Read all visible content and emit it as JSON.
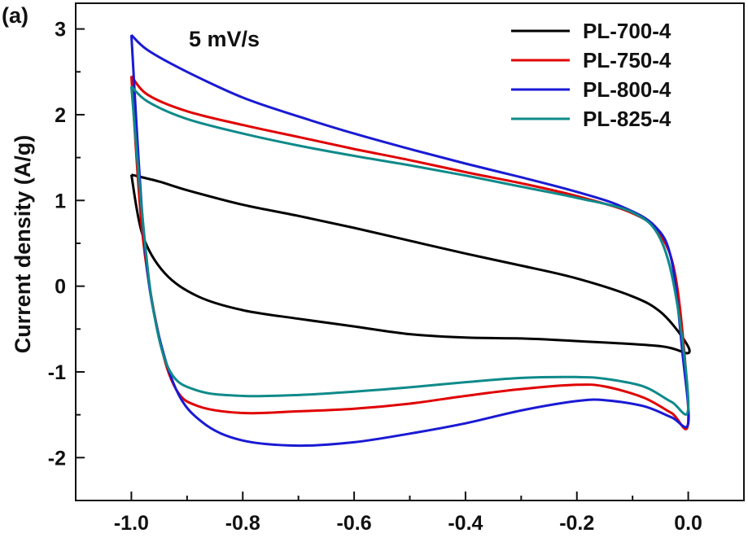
{
  "chart_data": {
    "type": "line",
    "panel_label": "(a)",
    "annotation": "5 mV/s",
    "xlabel": "",
    "ylabel": "Current density (A/g)",
    "xlim": [
      -1.1,
      0.1
    ],
    "ylim": [
      -2.5,
      3.3
    ],
    "x_ticks": [
      -1.0,
      -0.8,
      -0.6,
      -0.4,
      -0.2,
      0.0
    ],
    "x_tick_labels": [
      "-1.0",
      "-0.8",
      "-0.6",
      "-0.4",
      "-0.2",
      "0.0"
    ],
    "y_ticks": [
      -2,
      -1,
      0,
      1,
      2,
      3
    ],
    "y_tick_labels": [
      "-2",
      "-1",
      "0",
      "1",
      "2",
      "3"
    ],
    "grid": false,
    "legend_position": "top-right",
    "series": [
      {
        "name": "PL-700-4",
        "color": "#000000",
        "points": [
          [
            -1.0,
            1.3
          ],
          [
            -0.95,
            1.22
          ],
          [
            -0.9,
            1.12
          ],
          [
            -0.8,
            0.95
          ],
          [
            -0.7,
            0.82
          ],
          [
            -0.6,
            0.68
          ],
          [
            -0.5,
            0.53
          ],
          [
            -0.4,
            0.38
          ],
          [
            -0.3,
            0.24
          ],
          [
            -0.2,
            0.09
          ],
          [
            -0.1,
            -0.12
          ],
          [
            -0.05,
            -0.3
          ],
          [
            -0.01,
            -0.6
          ],
          [
            0.0,
            -0.78
          ],
          [
            -0.05,
            -0.7
          ],
          [
            -0.2,
            -0.64
          ],
          [
            -0.3,
            -0.61
          ],
          [
            -0.4,
            -0.6
          ],
          [
            -0.5,
            -0.56
          ],
          [
            -0.6,
            -0.47
          ],
          [
            -0.7,
            -0.38
          ],
          [
            -0.8,
            -0.28
          ],
          [
            -0.88,
            -0.12
          ],
          [
            -0.94,
            0.15
          ],
          [
            -0.98,
            0.6
          ],
          [
            -1.0,
            1.3
          ]
        ]
      },
      {
        "name": "PL-750-4",
        "color": "#e00000",
        "points": [
          [
            -1.0,
            2.45
          ],
          [
            -0.97,
            2.23
          ],
          [
            -0.9,
            2.04
          ],
          [
            -0.8,
            1.88
          ],
          [
            -0.7,
            1.74
          ],
          [
            -0.6,
            1.6
          ],
          [
            -0.5,
            1.47
          ],
          [
            -0.4,
            1.33
          ],
          [
            -0.3,
            1.2
          ],
          [
            -0.2,
            1.05
          ],
          [
            -0.1,
            0.85
          ],
          [
            -0.05,
            0.6
          ],
          [
            -0.02,
            0.0
          ],
          [
            0.0,
            -1.57
          ],
          [
            -0.03,
            -1.48
          ],
          [
            -0.08,
            -1.3
          ],
          [
            -0.15,
            -1.17
          ],
          [
            -0.2,
            -1.15
          ],
          [
            -0.3,
            -1.2
          ],
          [
            -0.4,
            -1.28
          ],
          [
            -0.5,
            -1.37
          ],
          [
            -0.6,
            -1.43
          ],
          [
            -0.7,
            -1.46
          ],
          [
            -0.8,
            -1.48
          ],
          [
            -0.88,
            -1.4
          ],
          [
            -0.92,
            -1.2
          ],
          [
            -0.95,
            -0.6
          ],
          [
            -0.98,
            0.6
          ],
          [
            -1.0,
            2.45
          ]
        ]
      },
      {
        "name": "PL-800-4",
        "color": "#1a1ad4",
        "points": [
          [
            -1.0,
            2.93
          ],
          [
            -0.97,
            2.75
          ],
          [
            -0.9,
            2.5
          ],
          [
            -0.8,
            2.2
          ],
          [
            -0.7,
            1.98
          ],
          [
            -0.6,
            1.78
          ],
          [
            -0.5,
            1.6
          ],
          [
            -0.4,
            1.43
          ],
          [
            -0.3,
            1.27
          ],
          [
            -0.2,
            1.1
          ],
          [
            -0.12,
            0.93
          ],
          [
            -0.06,
            0.7
          ],
          [
            -0.03,
            0.3
          ],
          [
            -0.01,
            -0.8
          ],
          [
            0.0,
            -1.6
          ],
          [
            -0.03,
            -1.53
          ],
          [
            -0.08,
            -1.4
          ],
          [
            -0.15,
            -1.33
          ],
          [
            -0.2,
            -1.34
          ],
          [
            -0.3,
            -1.45
          ],
          [
            -0.4,
            -1.6
          ],
          [
            -0.5,
            -1.72
          ],
          [
            -0.6,
            -1.82
          ],
          [
            -0.7,
            -1.86
          ],
          [
            -0.8,
            -1.8
          ],
          [
            -0.87,
            -1.6
          ],
          [
            -0.92,
            -1.2
          ],
          [
            -0.96,
            -0.3
          ],
          [
            -0.98,
            0.8
          ],
          [
            -1.0,
            2.93
          ]
        ]
      },
      {
        "name": "PL-825-4",
        "color": "#0f8a8a",
        "points": [
          [
            -1.0,
            2.33
          ],
          [
            -0.97,
            2.15
          ],
          [
            -0.9,
            1.95
          ],
          [
            -0.8,
            1.78
          ],
          [
            -0.7,
            1.64
          ],
          [
            -0.6,
            1.52
          ],
          [
            -0.5,
            1.41
          ],
          [
            -0.4,
            1.29
          ],
          [
            -0.3,
            1.16
          ],
          [
            -0.2,
            1.03
          ],
          [
            -0.1,
            0.86
          ],
          [
            -0.05,
            0.55
          ],
          [
            -0.02,
            -0.2
          ],
          [
            0.0,
            -1.42
          ],
          [
            -0.03,
            -1.35
          ],
          [
            -0.08,
            -1.17
          ],
          [
            -0.15,
            -1.08
          ],
          [
            -0.2,
            -1.06
          ],
          [
            -0.3,
            -1.07
          ],
          [
            -0.4,
            -1.12
          ],
          [
            -0.5,
            -1.18
          ],
          [
            -0.6,
            -1.23
          ],
          [
            -0.7,
            -1.27
          ],
          [
            -0.8,
            -1.28
          ],
          [
            -0.88,
            -1.22
          ],
          [
            -0.93,
            -1.0
          ],
          [
            -0.96,
            -0.3
          ],
          [
            -0.98,
            0.8
          ],
          [
            -1.0,
            2.33
          ]
        ]
      }
    ]
  }
}
